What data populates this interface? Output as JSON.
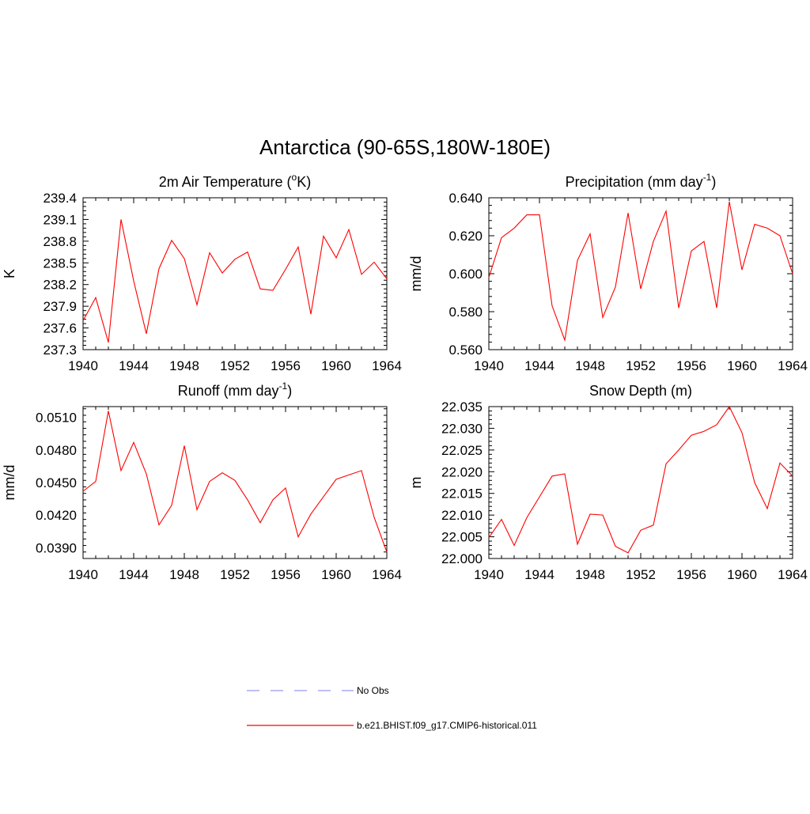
{
  "figure": {
    "title": "Antarctica (90-65S,180W-180E)"
  },
  "legend": [
    {
      "label": "No Obs",
      "color": "#9999ee",
      "style": "dashed"
    },
    {
      "label": "b.e21.BHIST.f09_g17.CMIP6-historical.011",
      "color": "#ff0000",
      "style": "solid"
    }
  ],
  "chart_data": [
    {
      "type": "line",
      "title": "2m Air Temperature (oK)",
      "title_parts": [
        {
          "text": "2m Air Temperature ("
        },
        {
          "text": "o",
          "sup": true
        },
        {
          "text": "K)"
        }
      ],
      "xlabel": "",
      "ylabel": "K",
      "xlim": [
        1940,
        1964
      ],
      "ylim": [
        237.3,
        239.4
      ],
      "xticks": [
        1940,
        1944,
        1948,
        1952,
        1956,
        1960,
        1964
      ],
      "xtick_labels": [
        "1940",
        "1944",
        "1948",
        "1952",
        "1956",
        "1960",
        "1964"
      ],
      "yticks": [
        237.3,
        237.6,
        237.9,
        238.2,
        238.5,
        238.8,
        239.1,
        239.4
      ],
      "ytick_labels": [
        "237.3",
        "237.6",
        "237.9",
        "238.2",
        "238.5",
        "238.8",
        "239.1",
        "239.4"
      ],
      "grid": false,
      "series": [
        {
          "name": "b.e21.BHIST.f09_g17.CMIP6-historical.011",
          "color": "#ff0000",
          "x": [
            1940,
            1941,
            1942,
            1943,
            1944,
            1945,
            1946,
            1947,
            1948,
            1949,
            1950,
            1951,
            1952,
            1953,
            1954,
            1955,
            1956,
            1957,
            1958,
            1959,
            1960,
            1961,
            1962,
            1963,
            1964
          ],
          "y": [
            237.7,
            238.02,
            237.4,
            239.1,
            238.25,
            237.52,
            238.42,
            238.81,
            238.56,
            237.92,
            238.64,
            238.36,
            238.55,
            238.65,
            238.14,
            238.12,
            238.41,
            238.72,
            237.79,
            238.87,
            238.57,
            238.96,
            238.34,
            238.51,
            238.28
          ]
        }
      ]
    },
    {
      "type": "line",
      "title": "Precipitation (mm day-1)",
      "title_parts": [
        {
          "text": "Precipitation (mm day"
        },
        {
          "text": "-1",
          "sup": true
        },
        {
          "text": ")"
        }
      ],
      "xlabel": "",
      "ylabel": "mm/d",
      "xlim": [
        1940,
        1964
      ],
      "ylim": [
        0.56,
        0.64
      ],
      "xticks": [
        1940,
        1944,
        1948,
        1952,
        1956,
        1960,
        1964
      ],
      "xtick_labels": [
        "1940",
        "1944",
        "1948",
        "1952",
        "1956",
        "1960",
        "1964"
      ],
      "yticks": [
        0.56,
        0.58,
        0.6,
        0.62,
        0.64
      ],
      "ytick_labels": [
        "0.560",
        "0.580",
        "0.600",
        "0.620",
        "0.640"
      ],
      "grid": false,
      "series": [
        {
          "name": "b.e21.BHIST.f09_g17.CMIP6-historical.011",
          "color": "#ff0000",
          "x": [
            1940,
            1941,
            1942,
            1943,
            1944,
            1945,
            1946,
            1947,
            1948,
            1949,
            1950,
            1951,
            1952,
            1953,
            1954,
            1955,
            1956,
            1957,
            1958,
            1959,
            1960,
            1961,
            1962,
            1963,
            1964
          ],
          "y": [
            0.598,
            0.619,
            0.624,
            0.631,
            0.631,
            0.583,
            0.565,
            0.607,
            0.621,
            0.577,
            0.593,
            0.632,
            0.592,
            0.617,
            0.633,
            0.582,
            0.612,
            0.617,
            0.582,
            0.638,
            0.602,
            0.626,
            0.624,
            0.62,
            0.6
          ]
        }
      ]
    },
    {
      "type": "line",
      "title": "Runoff (mm day-1)",
      "title_parts": [
        {
          "text": "Runoff (mm day"
        },
        {
          "text": "-1",
          "sup": true
        },
        {
          "text": ")"
        }
      ],
      "xlabel": "",
      "ylabel": "mm/d",
      "xlim": [
        1940,
        1964
      ],
      "ylim": [
        0.038,
        0.052
      ],
      "xticks": [
        1940,
        1944,
        1948,
        1952,
        1956,
        1960,
        1964
      ],
      "xtick_labels": [
        "1940",
        "1944",
        "1948",
        "1952",
        "1956",
        "1960",
        "1964"
      ],
      "yticks": [
        0.039,
        0.042,
        0.045,
        0.048,
        0.051
      ],
      "ytick_labels": [
        "0.0390",
        "0.0420",
        "0.0450",
        "0.0480",
        "0.0510"
      ],
      "grid": false,
      "series": [
        {
          "name": "b.e21.BHIST.f09_g17.CMIP6-historical.011",
          "color": "#ff0000",
          "x": [
            1940,
            1941,
            1942,
            1943,
            1944,
            1945,
            1946,
            1947,
            1948,
            1949,
            1950,
            1951,
            1952,
            1953,
            1954,
            1955,
            1956,
            1957,
            1958,
            1959,
            1960,
            1961,
            1962,
            1963,
            1964
          ],
          "y": [
            0.0442,
            0.0451,
            0.0516,
            0.0461,
            0.0487,
            0.0458,
            0.0411,
            0.0429,
            0.0484,
            0.0425,
            0.0451,
            0.0459,
            0.0452,
            0.0434,
            0.0413,
            0.0434,
            0.0445,
            0.04,
            0.0421,
            0.0437,
            0.0453,
            0.0457,
            0.0461,
            0.0418,
            0.0386
          ]
        }
      ]
    },
    {
      "type": "line",
      "title": "Snow Depth (m)",
      "title_parts": [
        {
          "text": "Snow Depth (m)"
        }
      ],
      "xlabel": "",
      "ylabel": "m",
      "xlim": [
        1940,
        1964
      ],
      "ylim": [
        22.0,
        22.035
      ],
      "xticks": [
        1940,
        1944,
        1948,
        1952,
        1956,
        1960,
        1964
      ],
      "xtick_labels": [
        "1940",
        "1944",
        "1948",
        "1952",
        "1956",
        "1960",
        "1964"
      ],
      "yticks": [
        22.0,
        22.005,
        22.01,
        22.015,
        22.02,
        22.025,
        22.03,
        22.035
      ],
      "ytick_labels": [
        "22.000",
        "22.005",
        "22.010",
        "22.015",
        "22.020",
        "22.025",
        "22.030",
        "22.035"
      ],
      "grid": false,
      "series": [
        {
          "name": "b.e21.BHIST.f09_g17.CMIP6-historical.011",
          "color": "#ff0000",
          "x": [
            1940,
            1941,
            1942,
            1943,
            1944,
            1945,
            1946,
            1947,
            1948,
            1949,
            1950,
            1951,
            1952,
            1953,
            1954,
            1955,
            1956,
            1957,
            1958,
            1959,
            1960,
            1961,
            1962,
            1963,
            1964
          ],
          "y": [
            22.0048,
            22.009,
            22.003,
            22.0094,
            22.0142,
            22.019,
            22.0195,
            22.0033,
            22.0102,
            22.01,
            22.0028,
            22.0013,
            22.0065,
            22.0077,
            22.0218,
            22.025,
            22.0284,
            22.0293,
            22.0308,
            22.035,
            22.029,
            22.0175,
            22.0115,
            22.022,
            22.019
          ]
        }
      ]
    }
  ]
}
